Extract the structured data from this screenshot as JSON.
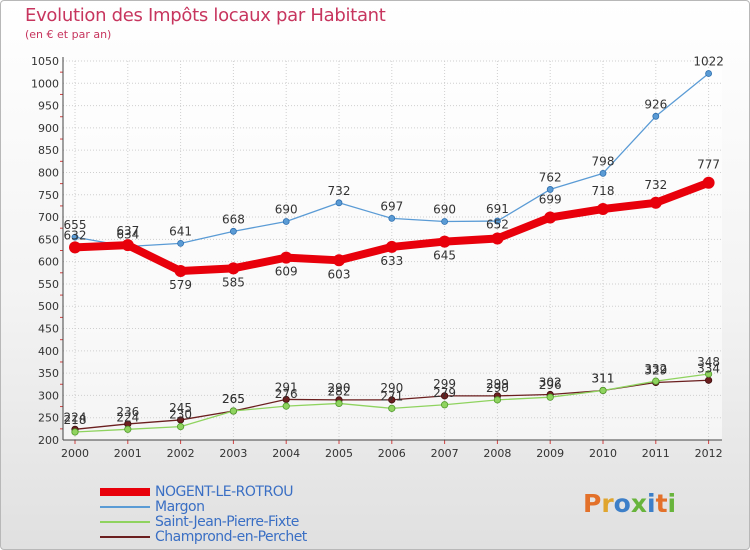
{
  "title": "Evolution des Impôts locaux par Habitant",
  "subtitle": "(en € et par an)",
  "logo_text": "Proxiti",
  "logo_colors": [
    "#e3712a",
    "#e0a52e",
    "#3d7fc8",
    "#68b43c",
    "#3d7fc8",
    "#e3712a",
    "#68b43c"
  ],
  "chart_data": {
    "type": "line",
    "title": "Evolution des Impôts locaux par Habitant",
    "subtitle": "(en € et par an)",
    "xlabel": "",
    "ylabel": "",
    "categories": [
      "2000",
      "2001",
      "2002",
      "2003",
      "2004",
      "2005",
      "2006",
      "2007",
      "2008",
      "2009",
      "2010",
      "2011",
      "2012"
    ],
    "ylim": [
      200,
      1050
    ],
    "yticks": [
      200,
      250,
      300,
      350,
      400,
      450,
      500,
      550,
      600,
      650,
      700,
      750,
      800,
      850,
      900,
      950,
      1000,
      1050
    ],
    "grid": true,
    "legend_position": "bottom-left",
    "series": [
      {
        "name": "NOGENT-LE-ROTROU",
        "color": "#e8000b",
        "values": [
          632,
          637,
          579,
          585,
          609,
          603,
          633,
          645,
          652,
          699,
          718,
          732,
          777
        ]
      },
      {
        "name": "Margon",
        "color": "#5a9bd5",
        "values": [
          655,
          634,
          641,
          668,
          690,
          732,
          697,
          690,
          691,
          762,
          798,
          926,
          1022
        ]
      },
      {
        "name": "Saint-Jean-Pierre-Fixte",
        "color": "#8fd35f",
        "values": [
          218,
          224,
          230,
          265,
          276,
          282,
          271,
          279,
          290,
          296,
          311,
          332,
          348
        ]
      },
      {
        "name": "Champrond-en-Perchet",
        "color": "#6b1f1f",
        "values": [
          224,
          236,
          245,
          265,
          291,
          290,
          290,
          299,
          299,
          302,
          311,
          329,
          334
        ]
      }
    ]
  }
}
